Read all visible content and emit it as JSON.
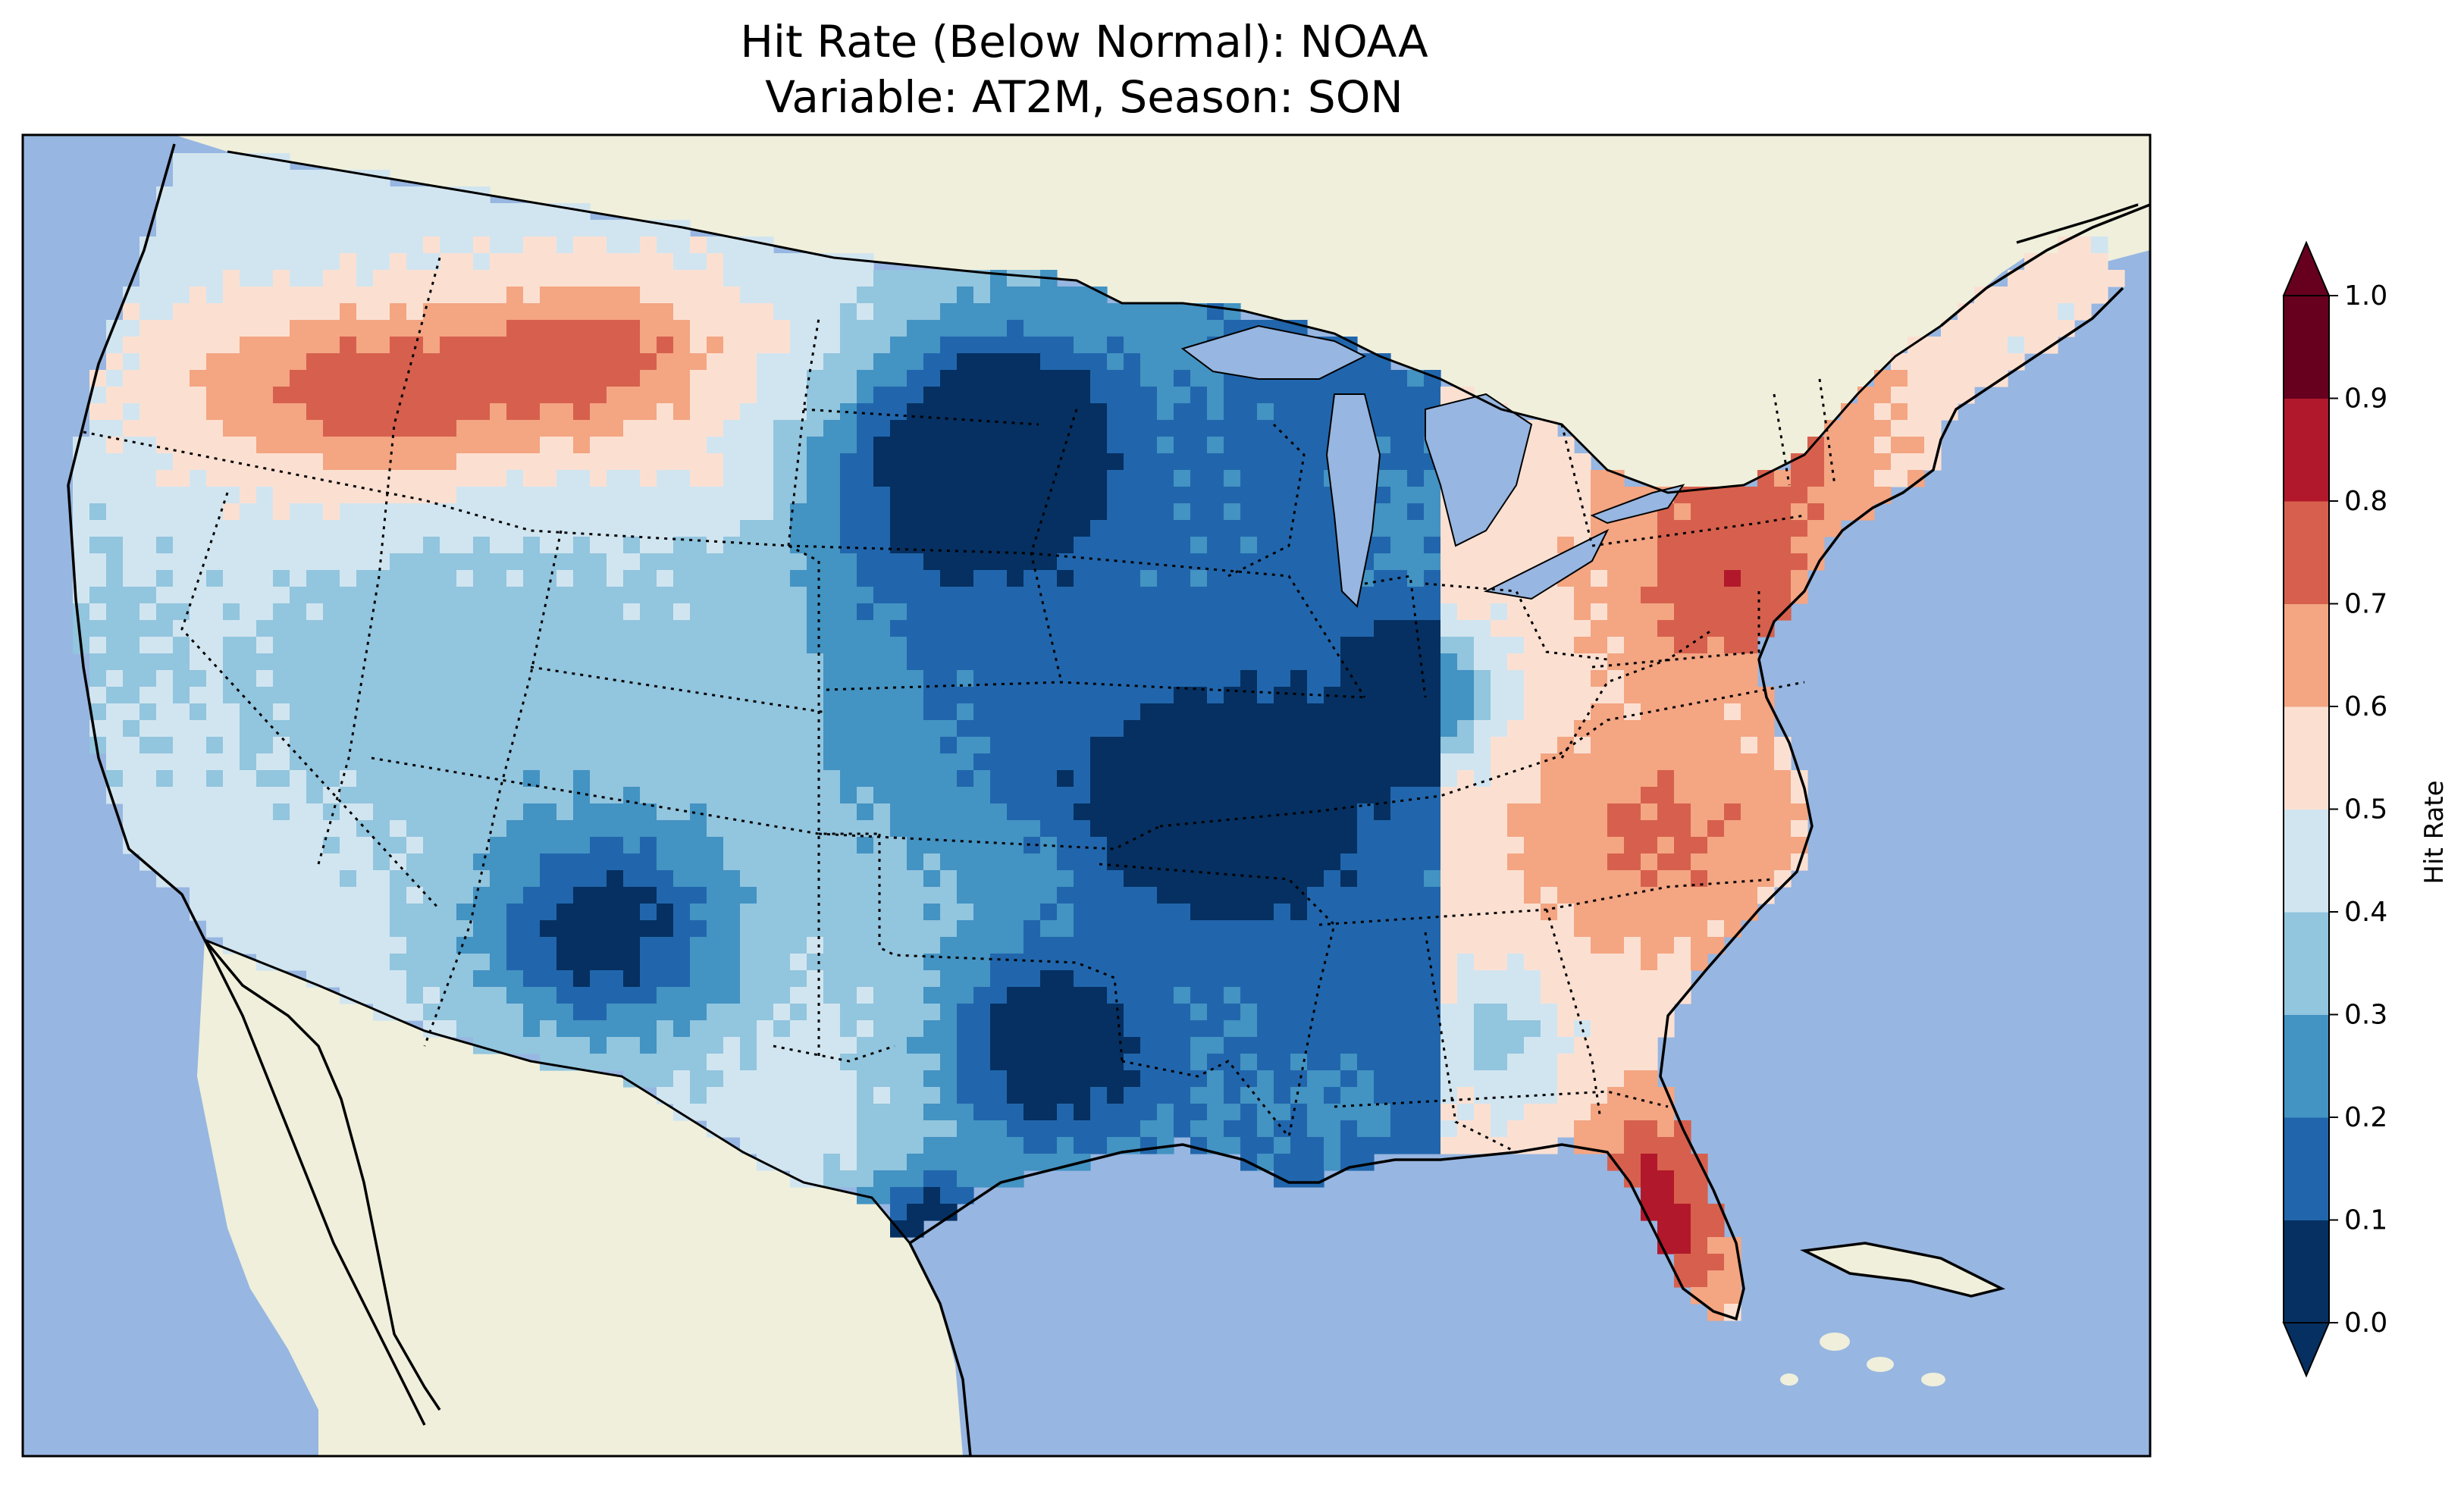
{
  "title": {
    "line1": "Hit Rate (Below Normal): NOAA",
    "line2": "Variable: AT2M, Season: SON"
  },
  "colors": {
    "ocean": "#97b6e1",
    "land": "#efefdb",
    "lakes": "#97b6e1"
  },
  "colorbar": {
    "label": "Hit Rate",
    "ticks": [
      "0.0",
      "0.1",
      "0.2",
      "0.3",
      "0.4",
      "0.5",
      "0.6",
      "0.7",
      "0.8",
      "0.9",
      "1.0"
    ],
    "bins": [
      {
        "from": 0.0,
        "to": 0.1,
        "color": "#053061"
      },
      {
        "from": 0.1,
        "to": 0.2,
        "color": "#2166ac"
      },
      {
        "from": 0.2,
        "to": 0.3,
        "color": "#4393c3"
      },
      {
        "from": 0.3,
        "to": 0.4,
        "color": "#92c5de"
      },
      {
        "from": 0.4,
        "to": 0.5,
        "color": "#d1e5f0"
      },
      {
        "from": 0.5,
        "to": 0.6,
        "color": "#fbe0d2"
      },
      {
        "from": 0.6,
        "to": 0.7,
        "color": "#f4a582"
      },
      {
        "from": 0.7,
        "to": 0.8,
        "color": "#d6604d"
      },
      {
        "from": 0.8,
        "to": 0.9,
        "color": "#b2182b"
      },
      {
        "from": 0.9,
        "to": 1.0,
        "color": "#67001f"
      }
    ],
    "extend_min_color": "#053061",
    "extend_max_color": "#67001f"
  }
}
